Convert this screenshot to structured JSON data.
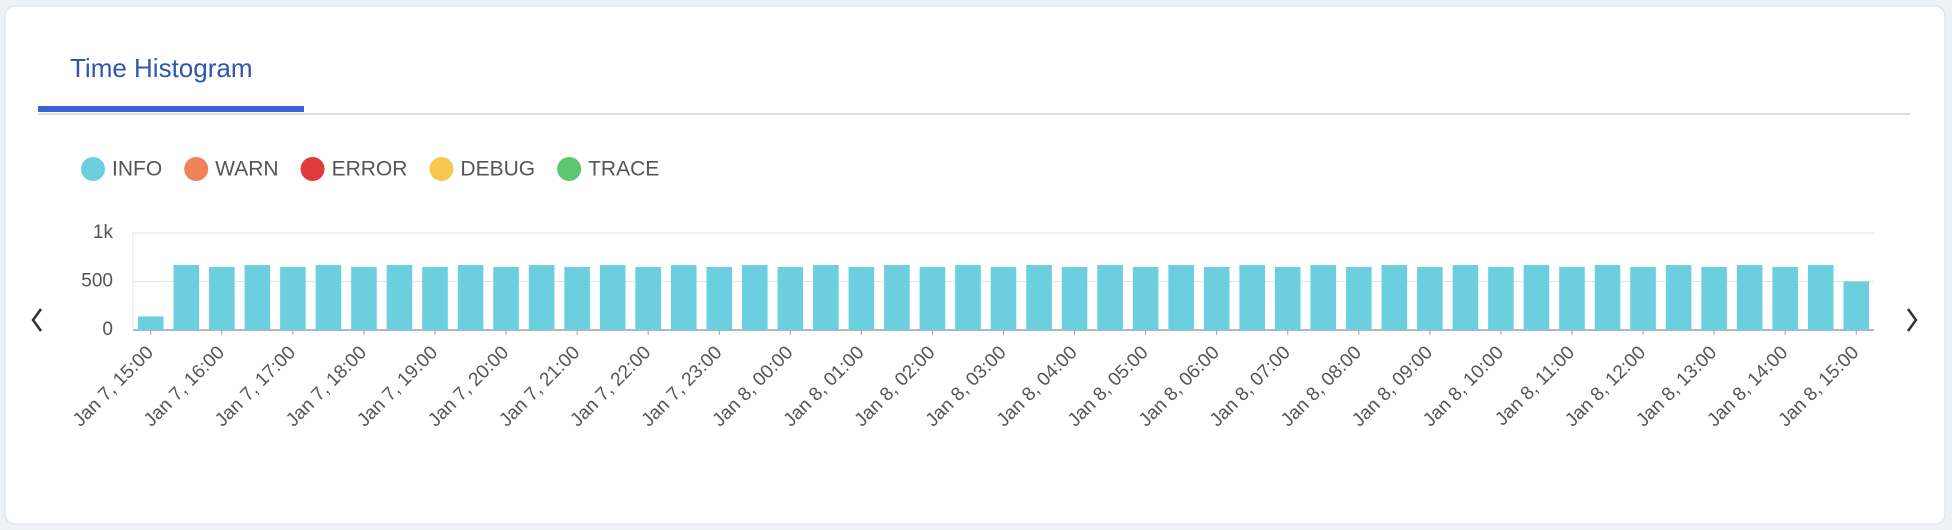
{
  "tab": {
    "label": "Time Histogram"
  },
  "chart_data": {
    "type": "stacked-bar",
    "categories": [
      "Jan 7, 15:00",
      null,
      "Jan 7, 16:00",
      null,
      "Jan 7, 17:00",
      null,
      "Jan 7, 18:00",
      null,
      "Jan 7, 19:00",
      null,
      "Jan 7, 20:00",
      null,
      "Jan 7, 21:00",
      null,
      "Jan 7, 22:00",
      null,
      "Jan 7, 23:00",
      null,
      "Jan 8, 00:00",
      null,
      "Jan 8, 01:00",
      null,
      "Jan 8, 02:00",
      null,
      "Jan 8, 03:00",
      null,
      "Jan 8, 04:00",
      null,
      "Jan 8, 05:00",
      null,
      "Jan 8, 06:00",
      null,
      "Jan 8, 07:00",
      null,
      "Jan 8, 08:00",
      null,
      "Jan 8, 09:00",
      null,
      "Jan 8, 10:00",
      null,
      "Jan 8, 11:00",
      null,
      "Jan 8, 12:00",
      null,
      "Jan 8, 13:00",
      null,
      "Jan 8, 14:00",
      null,
      "Jan 8, 15:00"
    ],
    "series": [
      {
        "name": "INFO",
        "color": "#6ccfe0",
        "values": [
          140,
          670,
          650,
          670,
          650,
          670,
          650,
          670,
          650,
          670,
          650,
          670,
          650,
          670,
          650,
          670,
          650,
          670,
          650,
          670,
          650,
          670,
          650,
          670,
          650,
          670,
          650,
          670,
          650,
          670,
          650,
          670,
          650,
          670,
          650,
          670,
          650,
          670,
          650,
          670,
          650,
          670,
          650,
          670,
          650,
          670,
          650,
          670,
          500
        ]
      },
      {
        "name": "WARN",
        "color": "#f0825a",
        "values": [
          0,
          0,
          0,
          0,
          0,
          0,
          0,
          0,
          0,
          0,
          0,
          0,
          0,
          0,
          0,
          0,
          0,
          0,
          0,
          0,
          0,
          0,
          0,
          0,
          0,
          0,
          0,
          0,
          0,
          0,
          0,
          0,
          0,
          0,
          0,
          0,
          0,
          0,
          0,
          0,
          0,
          0,
          0,
          0,
          0,
          0,
          0,
          0,
          0
        ]
      },
      {
        "name": "ERROR",
        "color": "#e0393e",
        "values": [
          0,
          0,
          0,
          0,
          0,
          0,
          0,
          0,
          0,
          0,
          0,
          0,
          0,
          0,
          0,
          0,
          0,
          0,
          0,
          0,
          0,
          0,
          0,
          0,
          0,
          0,
          0,
          0,
          0,
          0,
          0,
          0,
          0,
          0,
          0,
          0,
          0,
          0,
          0,
          0,
          0,
          0,
          0,
          0,
          0,
          0,
          0,
          0,
          0
        ]
      },
      {
        "name": "DEBUG",
        "color": "#f5c850",
        "values": [
          0,
          0,
          0,
          0,
          0,
          0,
          0,
          0,
          0,
          0,
          0,
          0,
          0,
          0,
          0,
          0,
          0,
          0,
          0,
          0,
          0,
          0,
          0,
          0,
          0,
          0,
          0,
          0,
          0,
          0,
          0,
          0,
          0,
          0,
          0,
          0,
          0,
          0,
          0,
          0,
          0,
          0,
          0,
          0,
          0,
          0,
          0,
          0,
          0
        ]
      },
      {
        "name": "TRACE",
        "color": "#5ec66e",
        "values": [
          0,
          0,
          0,
          0,
          0,
          0,
          0,
          0,
          0,
          0,
          0,
          0,
          0,
          0,
          0,
          0,
          0,
          0,
          0,
          0,
          0,
          0,
          0,
          0,
          0,
          0,
          0,
          0,
          0,
          0,
          0,
          0,
          0,
          0,
          0,
          0,
          0,
          0,
          0,
          0,
          0,
          0,
          0,
          0,
          0,
          0,
          0,
          0,
          0
        ]
      }
    ],
    "ylim": [
      0,
      1000
    ],
    "yticks": [
      0,
      500,
      {
        "value": 1000,
        "label": "1k"
      }
    ],
    "grid": true
  }
}
